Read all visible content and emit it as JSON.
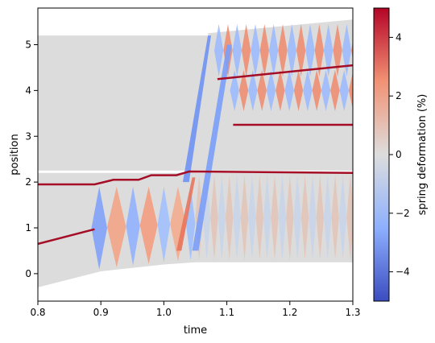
{
  "chart_data": {
    "type": "area",
    "xlabel": "time",
    "ylabel": "position",
    "xlim": [
      0.8,
      1.3
    ],
    "ylim": [
      -0.6,
      5.8
    ],
    "xticks": [
      "0.8",
      "0.9",
      "1.0",
      "1.1",
      "1.2",
      "1.3"
    ],
    "yticks": [
      "0",
      "1",
      "2",
      "3",
      "4",
      "5"
    ],
    "colorbar": {
      "label": "spring deformation (%)",
      "range": [
        -5,
        5
      ],
      "ticks": [
        "4",
        "2",
        "0",
        "−2",
        "−4"
      ],
      "tick_values": [
        4,
        2,
        0,
        -2,
        -4
      ],
      "colors": [
        "#3b4cc0",
        "#dddddd",
        "#b40426"
      ]
    },
    "bands": [
      {
        "top": [
          [
            0.8,
            5.2
          ],
          [
            1.07,
            5.2
          ],
          [
            1.3,
            5.5
          ]
        ],
        "bottom": [
          [
            0.8,
            2.25
          ],
          [
            1.3,
            2.25
          ]
        ]
      },
      {
        "top": [
          [
            0.8,
            2.2
          ],
          [
            1.3,
            2.2
          ]
        ],
        "bottom": [
          [
            0.8,
            -0.3
          ],
          [
            0.9,
            0.05
          ],
          [
            1.0,
            0.2
          ],
          [
            1.05,
            0.25
          ],
          [
            1.3,
            0.25
          ]
        ]
      }
    ],
    "boundaries": [
      {
        "x": [
          0.8,
          0.89,
          0.92,
          0.96,
          0.98,
          1.02,
          1.04,
          1.3
        ],
        "y": [
          1.95,
          1.95,
          2.05,
          2.05,
          2.15,
          2.15,
          2.23,
          2.2
        ]
      },
      {
        "x": [
          0.8,
          0.89
        ],
        "y": [
          0.65,
          0.97
        ]
      },
      {
        "x": [
          1.085,
          1.3
        ],
        "y": [
          4.25,
          4.55
        ]
      },
      {
        "x": [
          1.11,
          1.3
        ],
        "y": [
          3.25,
          3.25
        ]
      }
    ]
  }
}
